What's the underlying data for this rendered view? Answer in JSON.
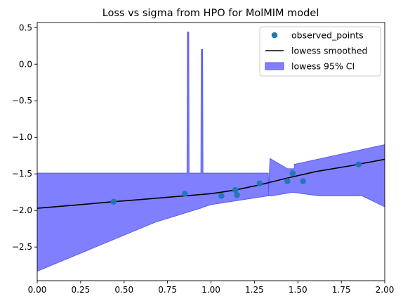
{
  "chart_data": {
    "type": "scatter",
    "title": "Loss vs sigma from HPO for MolMIM model",
    "xlabel": "",
    "ylabel": "",
    "xlim": [
      0,
      2
    ],
    "ylim": [
      -2.96,
      0.57
    ],
    "xticks": [
      "0.00",
      "0.25",
      "0.50",
      "0.75",
      "1.00",
      "1.25",
      "1.50",
      "1.75",
      "2.00"
    ],
    "xtick_values": [
      0,
      0.25,
      0.5,
      0.75,
      1.0,
      1.25,
      1.5,
      1.75,
      2.0
    ],
    "yticks": [
      "0.5",
      "0.0",
      "−0.5",
      "−1.0",
      "−1.5",
      "−2.0",
      "−2.5"
    ],
    "ytick_values": [
      0.5,
      0.0,
      -0.5,
      -1.0,
      -1.5,
      -2.0,
      -2.5
    ],
    "grid": false,
    "legend_position": "top-right",
    "colors": {
      "points": "#1f77b4",
      "smoothed": "#000000",
      "ci_fill": "#8080ff",
      "ci_edge": "#5a5af0"
    },
    "series": [
      {
        "name": "observed_points",
        "kind": "scatter",
        "x": [
          0.44,
          0.85,
          1.06,
          1.14,
          1.15,
          1.28,
          1.44,
          1.47,
          1.53,
          1.85
        ],
        "y": [
          -1.88,
          -1.77,
          -1.8,
          -1.72,
          -1.79,
          -1.63,
          -1.6,
          -1.49,
          -1.6,
          -1.37
        ]
      },
      {
        "name": "lowess smoothed",
        "kind": "line",
        "x": [
          0.0,
          0.2,
          0.44,
          0.6,
          0.85,
          1.0,
          1.06,
          1.14,
          1.2,
          1.28,
          1.4,
          1.47,
          1.6,
          1.8,
          2.0
        ],
        "y": [
          -1.97,
          -1.93,
          -1.88,
          -1.85,
          -1.8,
          -1.77,
          -1.75,
          -1.72,
          -1.69,
          -1.65,
          -1.58,
          -1.54,
          -1.47,
          -1.39,
          -1.3
        ]
      },
      {
        "name": "lowess 95% CI",
        "kind": "band",
        "upper": {
          "x": [
            0.0,
            0.862,
            0.864,
            0.872,
            0.874,
            0.942,
            0.944,
            0.952,
            0.954,
            1.33,
            1.33,
            1.34,
            1.44,
            1.48,
            1.48,
            2.0
          ],
          "y": [
            -1.49,
            -1.49,
            0.44,
            0.44,
            -1.49,
            -1.49,
            0.2,
            0.2,
            -1.49,
            -1.49,
            -1.8,
            -1.29,
            -1.43,
            -1.43,
            -1.37,
            -1.1
          ]
        },
        "lower": {
          "x": [
            0.0,
            0.68,
            0.94,
            0.96,
            1.0,
            1.33,
            1.35,
            1.4,
            1.47,
            1.62,
            1.65,
            1.87,
            2.0
          ],
          "y": [
            -2.83,
            -2.16,
            -1.97,
            -1.95,
            -1.92,
            -1.8,
            -1.8,
            -1.78,
            -1.75,
            -1.8,
            -1.8,
            -1.8,
            -1.95
          ]
        }
      }
    ]
  }
}
